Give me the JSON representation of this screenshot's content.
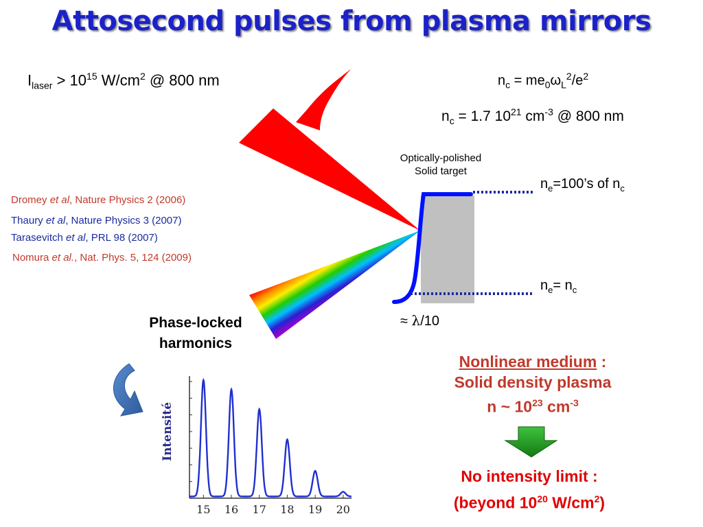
{
  "title": "Attosecond pulses from plasma mirrors",
  "intensity": {
    "prefix": "I",
    "prefix_sub": "laser",
    "mid": " > 10",
    "exp": "15",
    "unit": " W/cm",
    "unit_exp": "2",
    "suffix": " @ 800 nm"
  },
  "critical_density": {
    "line1": {
      "n": "n",
      "sub": "c",
      "eq": " = me",
      "sub0": "0",
      "omega": "ω",
      "subL": "L",
      "exp2": "2",
      "rest": "/e",
      "exp2b": "2"
    },
    "line2": {
      "n": "n",
      "sub": "c",
      "eq": " = 1.7 10",
      "exp": "21",
      "unit": " cm",
      "unit_exp": "-3",
      "suffix": " @ 800 nm"
    }
  },
  "target_label": {
    "line1": "Optically-polished",
    "line2": "Solid target"
  },
  "density_top": {
    "n": "n",
    "sub": "e",
    "eq": "=100’s of n",
    "sub2": "c"
  },
  "density_bottom": {
    "n": "n",
    "sub": "e",
    "eq": "= n",
    "sub2": "c"
  },
  "scale_length": {
    "approx": "≈ ",
    "lambda": "λ",
    "rest": "/10"
  },
  "references": [
    {
      "author": "Dromey ",
      "etal": "et al",
      "journal": ", Nature Physics 2 (2006)",
      "color": "#c0392b"
    },
    {
      "author": "Thaury ",
      "etal": "et al",
      "journal": ", Nature Physics 3 (2007)",
      "color": "#1a2aa0"
    },
    {
      "author": "Tarasevitch ",
      "etal": "et al",
      "journal": ", PRL 98 (2007)",
      "color": "#1a2aa0"
    },
    {
      "author": "Nomura ",
      "etal": "et al.",
      "journal": ", Nat. Phys. 5, 124 (2009)",
      "color": "#c0392b"
    }
  ],
  "phase_label": {
    "line1": "Phase-locked",
    "line2": "harmonics"
  },
  "nonlinear": {
    "heading": "Nonlinear medium",
    "colon": " :",
    "line2": "Solid density plasma",
    "line3_prefix": "n ~ 10",
    "line3_exp": "23",
    "line3_unit": " cm",
    "line3_unit_exp": "-3"
  },
  "no_limit": {
    "line1": "No intensity limit :",
    "line2_prefix": "(beyond 10",
    "line2_exp": "20",
    "line2_unit": " W/cm",
    "line2_unit_exp": "2",
    "line2_suffix": ")"
  },
  "colors": {
    "title": "#1b22c9",
    "laser": "#ff0000",
    "density_profile": "#0010ff",
    "target": "#c0c0c0",
    "dotted_line": "#1a2aa0",
    "arrow": "#1e9c1e",
    "curved_arrow": "#3f72b5",
    "spectrum_line": "#1f2fd0",
    "red_text": "#c0392b"
  },
  "chart_data": {
    "type": "line",
    "ylabel": "Intensité",
    "xlabel": "",
    "categories": [
      "15",
      "16",
      "17",
      "18",
      "19",
      "20"
    ],
    "peaks": [
      {
        "order": 15,
        "intensity": 1.0
      },
      {
        "order": 16,
        "intensity": 0.92
      },
      {
        "order": 17,
        "intensity": 0.75
      },
      {
        "order": 18,
        "intensity": 0.49
      },
      {
        "order": 19,
        "intensity": 0.22
      },
      {
        "order": 20,
        "intensity": 0.04
      }
    ],
    "xlim": [
      14.5,
      20.3
    ],
    "ylim": [
      0,
      1.05
    ],
    "grid": false
  }
}
